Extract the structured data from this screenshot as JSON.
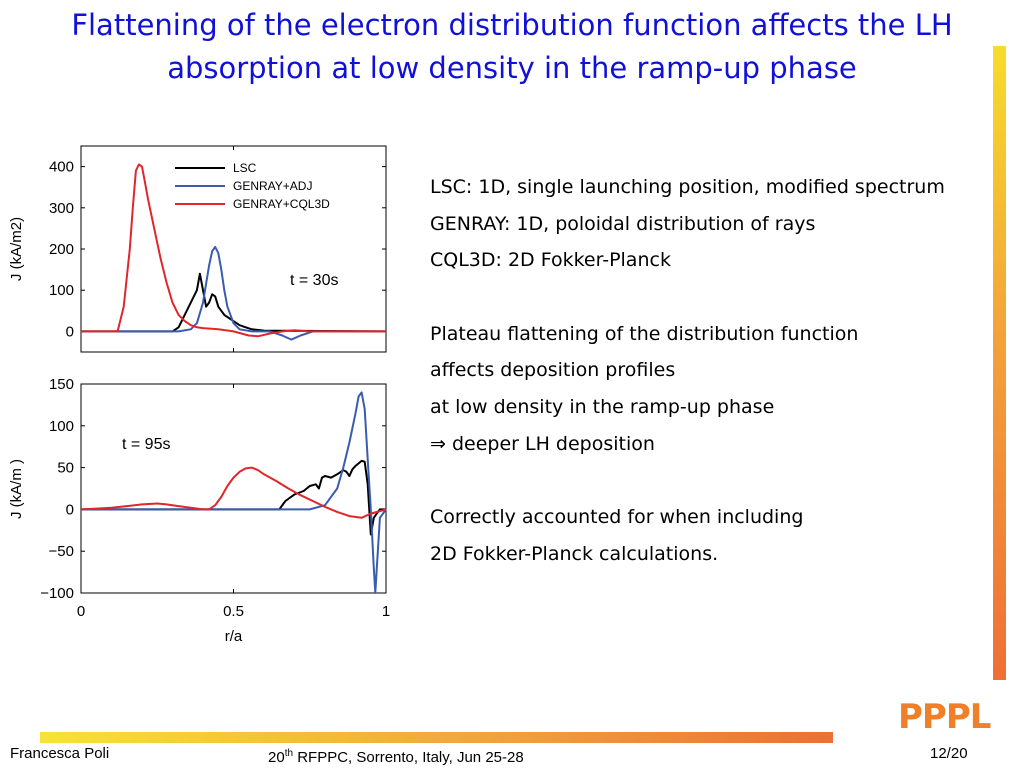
{
  "slide": {
    "title": "Flattening of the electron distribution function affects the LH absorption at low density in the ramp-up phase",
    "logo_text": "PPPL",
    "notes": [
      "LSC: 1D, single launching position, modified spectrum",
      "GENRAY: 1D, poloidal distribution of rays",
      "CQL3D:  2D Fokker-Planck",
      "",
      "Plateau flattening of the distribution function",
      "affects deposition profiles",
      "at low density in the ramp-up phase",
      "⇒ deeper LH deposition",
      "",
      "Correctly accounted for when including",
      "2D Fokker-Planck calculations."
    ],
    "footer": {
      "author": "Francesca Poli",
      "conference_ordinal": "20",
      "conference_sup": "th",
      "conference_rest": " RFPPC, Sorrento, Italy, Jun 25-28",
      "page": "12/20"
    },
    "colors": {
      "title": "#1010d8",
      "accent": "#f07f2a"
    }
  },
  "chart_data": [
    {
      "type": "line",
      "annotation": "t = 30s",
      "ylabel": "J (kA/m2)",
      "xlim": [
        0,
        1
      ],
      "ylim": [
        -50,
        450
      ],
      "yticks": [
        0,
        100,
        200,
        300,
        400
      ],
      "legend": {
        "position": "top-right",
        "entries": [
          "LSC",
          "GENRAY+ADJ",
          "GENRAY+CQL3D"
        ]
      },
      "series": [
        {
          "name": "LSC",
          "color": "#000000",
          "x": [
            0,
            0.3,
            0.32,
            0.34,
            0.36,
            0.38,
            0.39,
            0.4,
            0.41,
            0.42,
            0.43,
            0.44,
            0.45,
            0.46,
            0.47,
            0.48,
            0.5,
            0.52,
            0.54,
            0.56,
            0.6,
            1.0
          ],
          "y": [
            0,
            0,
            10,
            40,
            70,
            100,
            140,
            100,
            60,
            70,
            90,
            85,
            60,
            50,
            40,
            35,
            25,
            15,
            10,
            5,
            2,
            0
          ]
        },
        {
          "name": "GENRAY+ADJ",
          "color": "#3a5bb0",
          "x": [
            0,
            0.32,
            0.36,
            0.38,
            0.4,
            0.42,
            0.43,
            0.44,
            0.45,
            0.46,
            0.47,
            0.48,
            0.5,
            0.52,
            0.56,
            0.62,
            0.66,
            0.69,
            0.72,
            0.76,
            0.8,
            1.0
          ],
          "y": [
            0,
            0,
            5,
            20,
            70,
            160,
            195,
            205,
            190,
            150,
            100,
            60,
            20,
            5,
            0,
            0,
            -10,
            -20,
            -10,
            0,
            0,
            0
          ]
        },
        {
          "name": "GENRAY+CQL3D",
          "color": "#e0262a",
          "x": [
            0,
            0.12,
            0.14,
            0.16,
            0.17,
            0.18,
            0.19,
            0.2,
            0.21,
            0.22,
            0.24,
            0.26,
            0.28,
            0.3,
            0.32,
            0.34,
            0.36,
            0.38,
            0.4,
            0.45,
            0.5,
            0.55,
            0.58,
            0.62,
            0.66,
            0.7,
            0.75,
            1.0
          ],
          "y": [
            0,
            0,
            60,
            200,
            300,
            390,
            405,
            400,
            360,
            320,
            250,
            180,
            120,
            70,
            40,
            25,
            15,
            10,
            8,
            5,
            0,
            -10,
            -12,
            -5,
            0,
            3,
            0,
            0
          ]
        }
      ]
    },
    {
      "type": "line",
      "annotation": "t = 95s",
      "xlabel": "r/a",
      "ylabel": "J (kA/m  )",
      "xlim": [
        0,
        1
      ],
      "ylim": [
        -100,
        150
      ],
      "xticks": [
        0,
        0.5,
        1
      ],
      "yticks": [
        -100,
        -50,
        0,
        50,
        100,
        150
      ],
      "series": [
        {
          "name": "LSC",
          "color": "#000000",
          "x": [
            0,
            0.65,
            0.67,
            0.7,
            0.73,
            0.75,
            0.77,
            0.78,
            0.79,
            0.8,
            0.82,
            0.84,
            0.86,
            0.87,
            0.88,
            0.89,
            0.9,
            0.91,
            0.92,
            0.93,
            0.94,
            0.95,
            0.96,
            0.97,
            0.98,
            1.0
          ],
          "y": [
            0,
            0,
            10,
            18,
            22,
            28,
            30,
            25,
            38,
            40,
            38,
            42,
            47,
            45,
            40,
            48,
            52,
            55,
            58,
            57,
            30,
            -30,
            -10,
            -5,
            0,
            0
          ]
        },
        {
          "name": "GENRAY+ADJ",
          "color": "#3a5bb0",
          "x": [
            0,
            0.75,
            0.8,
            0.84,
            0.86,
            0.88,
            0.9,
            0.91,
            0.92,
            0.93,
            0.94,
            0.95,
            0.96,
            0.965,
            0.97,
            0.98,
            1.0
          ],
          "y": [
            0,
            0,
            5,
            25,
            50,
            80,
            115,
            135,
            140,
            120,
            60,
            0,
            -70,
            -100,
            -70,
            -10,
            0
          ]
        },
        {
          "name": "GENRAY+CQL3D",
          "color": "#e0262a",
          "x": [
            0,
            0.05,
            0.1,
            0.15,
            0.2,
            0.25,
            0.28,
            0.32,
            0.36,
            0.4,
            0.42,
            0.44,
            0.46,
            0.48,
            0.5,
            0.52,
            0.54,
            0.56,
            0.58,
            0.6,
            0.64,
            0.68,
            0.72,
            0.76,
            0.8,
            0.84,
            0.88,
            0.92,
            0.95,
            0.98,
            1.0
          ],
          "y": [
            0,
            1,
            2,
            4,
            6,
            7,
            6,
            4,
            2,
            0,
            0,
            5,
            15,
            28,
            38,
            45,
            49,
            50,
            47,
            42,
            34,
            25,
            17,
            10,
            3,
            -3,
            -8,
            -10,
            -5,
            -2,
            0
          ]
        }
      ]
    }
  ]
}
